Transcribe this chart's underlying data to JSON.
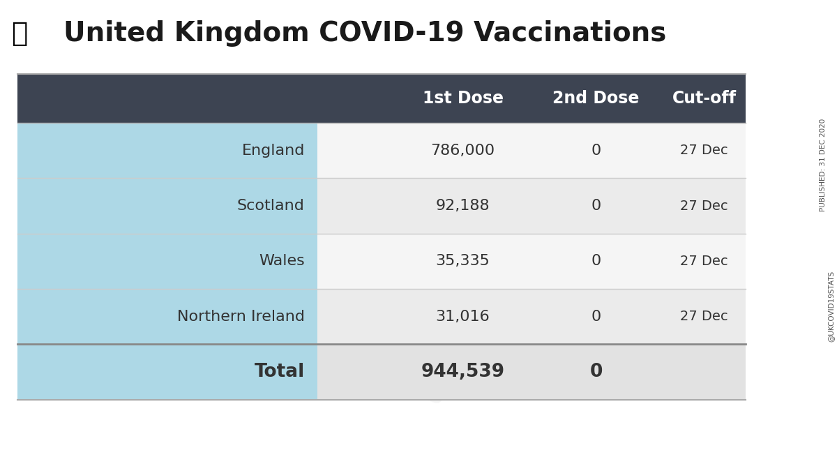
{
  "title": "United Kingdom COVID-19 Vaccinations",
  "published": "PUBLISHED: 31 DEC 2020",
  "handle": "@UKCOVID19STATS",
  "header_bg": "#3d4452",
  "header_text_color": "#ffffff",
  "row_bg_light": "#add8e6",
  "total_bg": "#add8e6",
  "col_header": [
    "1st Dose",
    "2nd Dose",
    "Cut-off"
  ],
  "rows": [
    {
      "country": "England",
      "dose1": "786,000",
      "dose2": "0",
      "cutoff": "27 Dec"
    },
    {
      "country": "Scotland",
      "dose1": "92,188",
      "dose2": "0",
      "cutoff": "27 Dec"
    },
    {
      "country": "Wales",
      "dose1": "35,335",
      "dose2": "0",
      "cutoff": "27 Dec"
    },
    {
      "country": "Northern Ireland",
      "dose1": "31,016",
      "dose2": "0",
      "cutoff": "27 Dec"
    }
  ],
  "total_label": "Total",
  "total_dose1": "944,539",
  "total_dose2": "0",
  "fig_bg": "#ffffff",
  "title_color": "#1a1a1a",
  "body_text_color": "#333333"
}
